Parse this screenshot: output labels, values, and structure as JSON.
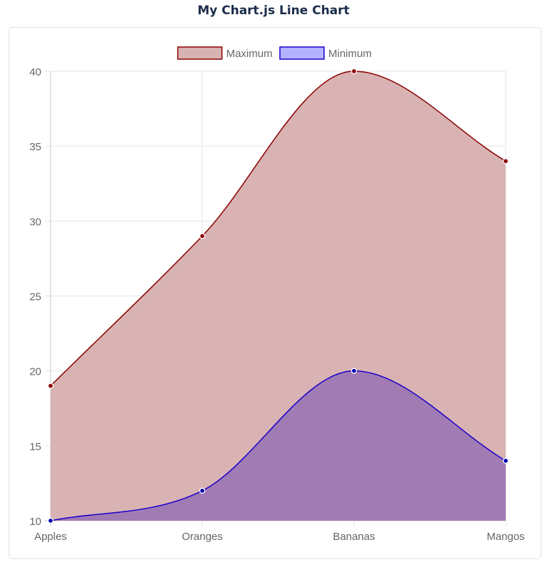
{
  "page": {
    "title": "My Chart.js Line Chart"
  },
  "chart_data": {
    "type": "area",
    "categories": [
      "Apples",
      "Oranges",
      "Bananas",
      "Mangos"
    ],
    "series": [
      {
        "name": "Maximum",
        "values": [
          19,
          29,
          40,
          34
        ],
        "border_color": "#8b0000",
        "fill_color": "#d9b3b3",
        "point_color": "#8b0000"
      },
      {
        "name": "Minimum",
        "values": [
          10,
          12,
          20,
          14
        ],
        "border_color": "#1a00cc",
        "fill_color": "#a17bb4",
        "legend_fill_color": "#b3b3ff",
        "point_color": "#0000b0"
      }
    ],
    "ylim": [
      10,
      40
    ],
    "yticks": [
      10,
      15,
      20,
      25,
      30,
      35,
      40
    ],
    "grid": true,
    "legend_position": "top",
    "title": "",
    "xlabel": "",
    "ylabel": ""
  }
}
